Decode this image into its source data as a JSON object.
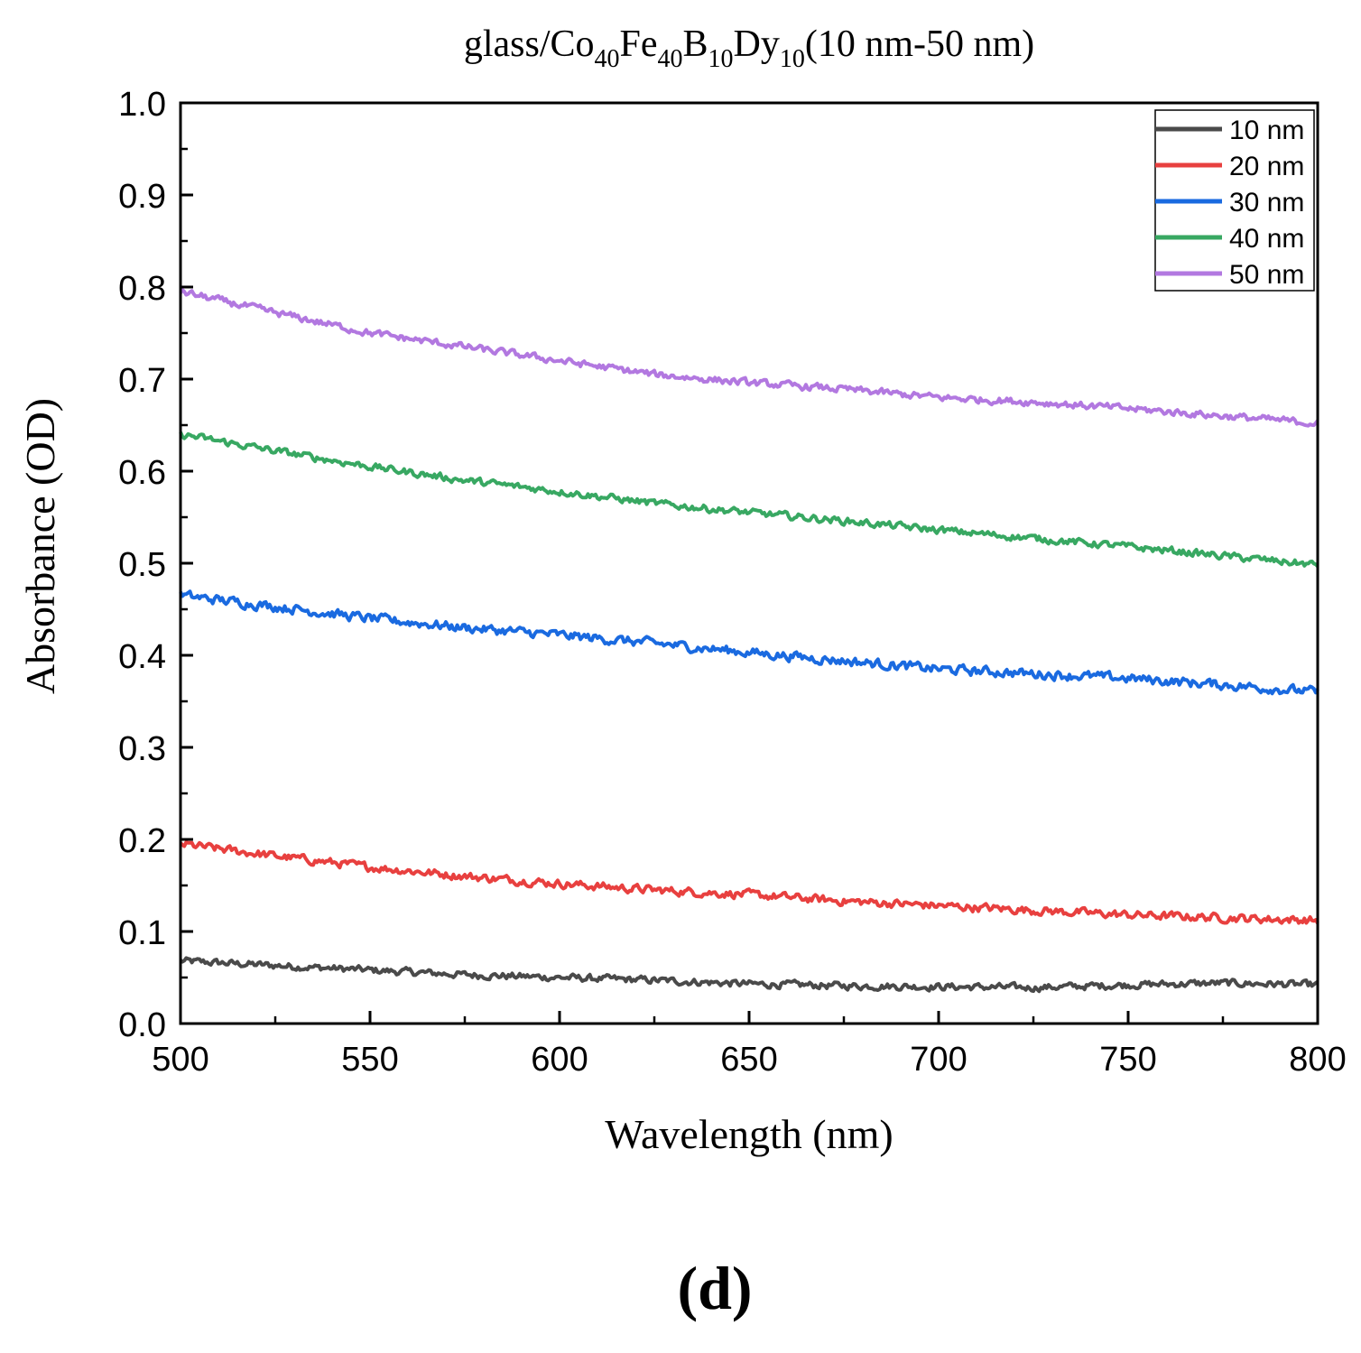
{
  "chart_data": {
    "type": "line",
    "title": {
      "prefix": "glass/Co",
      "co_sub": "40",
      "fe": "Fe",
      "fe_sub": "40",
      "b": "B",
      "b_sub": "10",
      "dy": "Dy",
      "dy_sub": "10",
      "suffix": "(10 nm-50 nm)"
    },
    "xlabel": "Wavelength (nm)",
    "ylabel": "Absorbance (OD)",
    "xlim": [
      500,
      800
    ],
    "ylim": [
      0.0,
      1.0
    ],
    "xticks": [
      "500",
      "550",
      "600",
      "650",
      "700",
      "750",
      "800"
    ],
    "yticks": [
      "0.0",
      "0.1",
      "0.2",
      "0.3",
      "0.4",
      "0.5",
      "0.6",
      "0.7",
      "0.8",
      "0.9",
      "1.0"
    ],
    "legend_position": "top-right",
    "panel_label": "(d)",
    "series": [
      {
        "name": "10 nm",
        "color": "#4a4a4a",
        "x": [
          500,
          525,
          550,
          575,
          600,
          625,
          650,
          675,
          700,
          725,
          750,
          775,
          800
        ],
        "y": [
          0.068,
          0.063,
          0.058,
          0.053,
          0.05,
          0.047,
          0.043,
          0.041,
          0.04,
          0.039,
          0.042,
          0.044,
          0.042
        ],
        "noise": 0.012
      },
      {
        "name": "20 nm",
        "color": "#e8403f",
        "x": [
          500,
          525,
          550,
          575,
          600,
          625,
          650,
          675,
          700,
          725,
          750,
          775,
          800
        ],
        "y": [
          0.195,
          0.182,
          0.17,
          0.16,
          0.152,
          0.145,
          0.14,
          0.133,
          0.128,
          0.123,
          0.118,
          0.115,
          0.112
        ],
        "noise": 0.014
      },
      {
        "name": "30 nm",
        "color": "#1a6ae0",
        "x": [
          500,
          525,
          550,
          575,
          600,
          625,
          650,
          675,
          700,
          725,
          750,
          775,
          800
        ],
        "y": [
          0.465,
          0.453,
          0.44,
          0.43,
          0.422,
          0.413,
          0.403,
          0.394,
          0.385,
          0.38,
          0.375,
          0.368,
          0.36
        ],
        "noise": 0.016
      },
      {
        "name": "40 nm",
        "color": "#38a862",
        "x": [
          500,
          525,
          550,
          575,
          600,
          625,
          650,
          675,
          700,
          725,
          750,
          775,
          800
        ],
        "y": [
          0.64,
          0.622,
          0.605,
          0.59,
          0.578,
          0.565,
          0.555,
          0.546,
          0.536,
          0.527,
          0.518,
          0.508,
          0.498
        ],
        "noise": 0.012
      },
      {
        "name": "50 nm",
        "color": "#b278e0",
        "x": [
          500,
          525,
          550,
          575,
          600,
          625,
          650,
          675,
          700,
          725,
          750,
          775,
          800
        ],
        "y": [
          0.795,
          0.772,
          0.75,
          0.735,
          0.72,
          0.705,
          0.696,
          0.689,
          0.68,
          0.675,
          0.668,
          0.66,
          0.652
        ],
        "noise": 0.012
      }
    ]
  }
}
